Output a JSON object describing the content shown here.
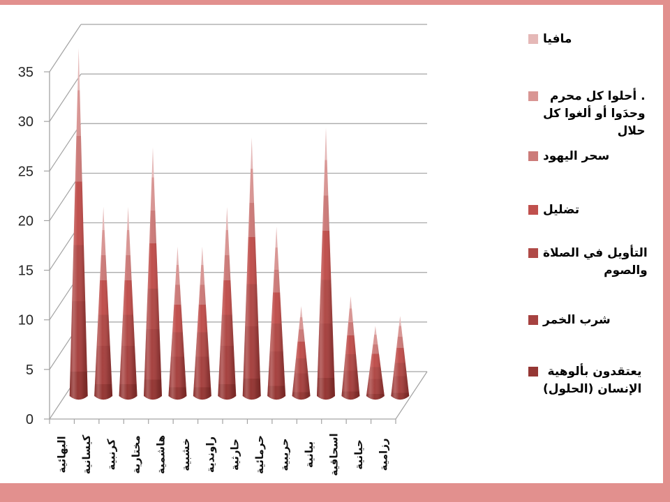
{
  "frame": {
    "color": "#e2908e"
  },
  "legend": {
    "items": [
      {
        "label": "مافيا",
        "color": "#e5b8b7"
      },
      {
        "label": ". أحلوا كل محرم\nوحدَوا أو ألغوا كل\nحلال",
        "color": "#d99694"
      },
      {
        "label": "سحر اليهود",
        "color": "#cc7b79"
      },
      {
        "label": "تضليل",
        "color": "#c0504d"
      },
      {
        "label": "التأويل في الصلاة\nوالصوم",
        "color": "#b04a47"
      },
      {
        "label": "شرب الخمر",
        "color": "#a64240"
      },
      {
        "label": "يعتقدون بألوهية\nالإنسان (الحلول)",
        "color": "#953734"
      }
    ]
  },
  "chart_data": {
    "type": "bar",
    "subtype": "3d-stacked-cone",
    "title": "",
    "xlabel": "",
    "ylabel": "",
    "ylim": [
      0,
      35
    ],
    "y_ticks": [
      0,
      5,
      10,
      15,
      20,
      25,
      30,
      35
    ],
    "grid": true,
    "legend_position": "right",
    "categories": [
      "البهائية",
      "كيسانية",
      "كرنبية",
      "مختارية",
      "هاشمية",
      "خشبية",
      "راوندية",
      "حارثية",
      "حرمائية",
      "حريبية",
      "بيانية",
      "اسحاقية",
      "حيانية",
      "رزامية"
    ],
    "totals": [
      35,
      19,
      19,
      25,
      15,
      15,
      19,
      26,
      17,
      9,
      27,
      10,
      7,
      8
    ],
    "series_note": "stacked cones; per-series split estimated from color-band proportions",
    "series": [
      {
        "name": "مافيا",
        "color": "#e5b8b7",
        "fraction": 0.12,
        "values": [
          4.2,
          2.3,
          2.3,
          3.0,
          1.8,
          1.8,
          2.3,
          3.1,
          2.0,
          1.1,
          3.2,
          1.2,
          0.8,
          1.0
        ]
      },
      {
        "name": "أحلوا كل محرم وحدَوا أو ألغوا كل حلال",
        "color": "#d99694",
        "fraction": 0.13,
        "values": [
          4.6,
          2.5,
          2.5,
          3.3,
          2.0,
          2.0,
          2.5,
          3.4,
          2.2,
          1.2,
          3.5,
          1.3,
          0.9,
          1.0
        ]
      },
      {
        "name": "سحر اليهود",
        "color": "#cc7b79",
        "fraction": 0.13,
        "values": [
          4.6,
          2.5,
          2.5,
          3.3,
          2.0,
          2.0,
          2.5,
          3.4,
          2.2,
          1.2,
          3.5,
          1.3,
          0.9,
          1.0
        ]
      },
      {
        "name": "تضليل",
        "color": "#c0504d",
        "fraction": 0.18,
        "values": [
          6.3,
          3.4,
          3.4,
          4.5,
          2.7,
          2.7,
          3.4,
          4.7,
          3.1,
          1.6,
          4.9,
          1.8,
          1.3,
          1.4
        ]
      },
      {
        "name": "التأويل في الصلاة والصوم",
        "color": "#b04a47",
        "fraction": 0.16,
        "values": [
          5.6,
          3.0,
          3.0,
          4.0,
          2.4,
          2.4,
          3.0,
          4.2,
          2.7,
          1.4,
          4.3,
          1.6,
          1.1,
          1.3
        ]
      },
      {
        "name": "شرب الخمر",
        "color": "#a64240",
        "fraction": 0.2,
        "values": [
          7.0,
          3.8,
          3.8,
          5.0,
          3.0,
          3.0,
          3.8,
          5.2,
          3.4,
          1.8,
          5.4,
          2.0,
          1.4,
          1.6
        ]
      },
      {
        "name": "يعتقدون بألوهية الإنسان (الحلول)",
        "color": "#953734",
        "fraction": 0.08,
        "values": [
          2.8,
          1.5,
          1.5,
          2.0,
          1.2,
          1.2,
          1.5,
          2.1,
          1.4,
          0.7,
          2.2,
          0.8,
          0.6,
          0.6
        ]
      }
    ],
    "stack_order_bottom_to_top": [
      "يعتقدون بألوهية الإنسان (الحلول)",
      "شرب الخمر",
      "التأويل في الصلاة والصوم",
      "تضليل",
      "سحر اليهود",
      "أحلوا كل محرم وحدَوا أو ألغوا كل حلال",
      "مافيا"
    ]
  }
}
